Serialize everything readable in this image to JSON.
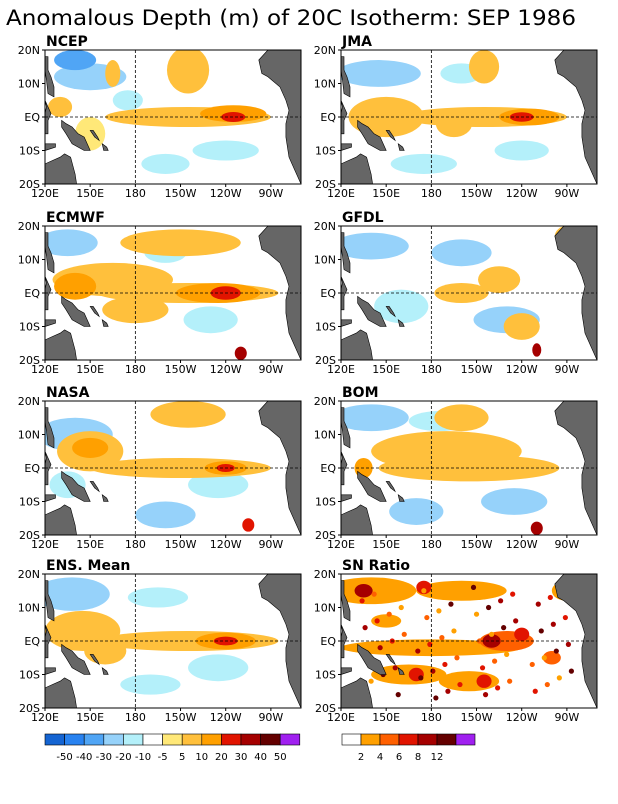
{
  "title": "Anomalous Depth (m) of 20C Isotherm: SEP 1986",
  "lat_labels": [
    "20N",
    "10N",
    "EQ",
    "10S",
    "20S"
  ],
  "lon_labels": [
    "120E",
    "150E",
    "180",
    "150W",
    "120W",
    "90W"
  ],
  "chart_data": [
    {
      "type": "heatmap",
      "name": "NCEP",
      "region": "tropical Pacific 20S-20N, 120E-70W",
      "warm_core_lon": "~115W",
      "warm_core_lat": "EQ"
    },
    {
      "type": "heatmap",
      "name": "JMA",
      "region": "tropical Pacific 20S-20N, 120E-70W",
      "warm_core_lon": "~120W",
      "warm_core_lat": "EQ"
    },
    {
      "type": "heatmap",
      "name": "ECMWF",
      "region": "tropical Pacific 20S-20N, 120E-70W",
      "warm_core_lon": "~115W",
      "warm_core_lat": "EQ"
    },
    {
      "type": "heatmap",
      "name": "GFDL",
      "region": "tropical Pacific 20S-20N, 120E-70W"
    },
    {
      "type": "heatmap",
      "name": "NASA",
      "region": "tropical Pacific 20S-20N, 120E-70W",
      "warm_core_lon": "~120W",
      "warm_core_lat": "EQ"
    },
    {
      "type": "heatmap",
      "name": "BOM",
      "region": "tropical Pacific 20S-20N, 120E-70W"
    },
    {
      "type": "heatmap",
      "name": "ENS. Mean",
      "region": "tropical Pacific 20S-20N, 120E-70W",
      "warm_core_lon": "~120W",
      "warm_core_lat": "EQ"
    },
    {
      "type": "heatmap",
      "name": "SN Ratio",
      "region": "tropical Pacific 20S-20N, 120E-70W"
    }
  ],
  "legend_anom": {
    "labels": [
      "-50",
      "-40",
      "-30",
      "-20",
      "-10",
      "-5",
      "5",
      "10",
      "20",
      "30",
      "40",
      "50"
    ],
    "colors": [
      "#1464d2",
      "#2882f0",
      "#50a5f5",
      "#96d2fa",
      "#b4f0fa",
      "#ffffff",
      "#ffe878",
      "#ffc03c",
      "#ffa000",
      "#e11400",
      "#a50000",
      "#640000",
      "#a020f0"
    ]
  },
  "legend_sn": {
    "labels": [
      "2",
      "4",
      "6",
      "8",
      "12"
    ],
    "colors": [
      "#ffffff",
      "#ffa000",
      "#ff6000",
      "#e11400",
      "#a50000",
      "#640000",
      "#a020f0"
    ]
  },
  "colors": {
    "land": "#666666"
  }
}
